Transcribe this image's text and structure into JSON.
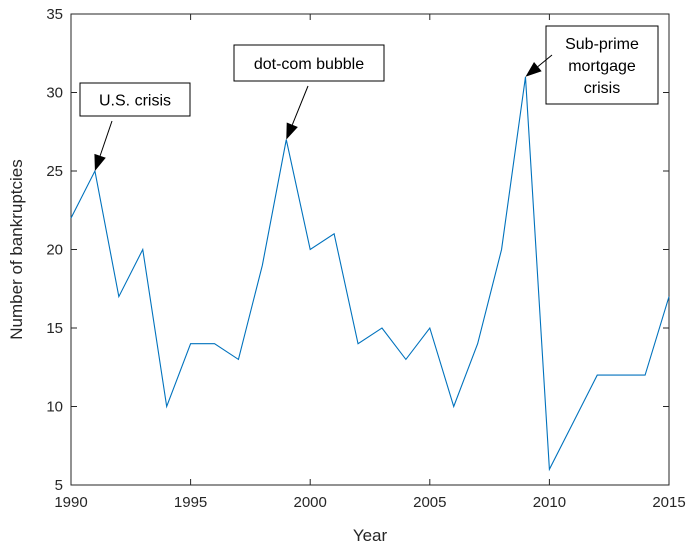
{
  "chart_data": {
    "type": "line",
    "title": "",
    "xlabel": "Year",
    "ylabel": "Number of bankruptcies",
    "xlim": [
      1990,
      2015
    ],
    "ylim": [
      5,
      35
    ],
    "xticks": [
      1990,
      1995,
      2000,
      2005,
      2010,
      2015
    ],
    "yticks": [
      5,
      10,
      15,
      20,
      25,
      30,
      35
    ],
    "grid": false,
    "legend": "none",
    "series": [
      {
        "color": "#0072bd",
        "x": [
          1990,
          1991,
          1992,
          1993,
          1994,
          1995,
          1996,
          1997,
          1998,
          1999,
          2000,
          2001,
          2002,
          2003,
          2004,
          2005,
          2006,
          2007,
          2008,
          2009,
          2010,
          2011,
          2012,
          2013,
          2014,
          2015
        ],
        "y": [
          22,
          25,
          17,
          20,
          10,
          14,
          14,
          13,
          19,
          27,
          20,
          21,
          14,
          15,
          13,
          15,
          10,
          14,
          20,
          31,
          6,
          9,
          12,
          12,
          12,
          17
        ]
      }
    ],
    "annotations": [
      {
        "lines": [
          "U.S. crisis"
        ],
        "target": [
          1991,
          25
        ]
      },
      {
        "lines": [
          "dot-com bubble"
        ],
        "target": [
          1999,
          27
        ]
      },
      {
        "lines": [
          "Sub-prime",
          "mortgage",
          "crisis"
        ],
        "target": [
          2009,
          31
        ]
      }
    ]
  }
}
